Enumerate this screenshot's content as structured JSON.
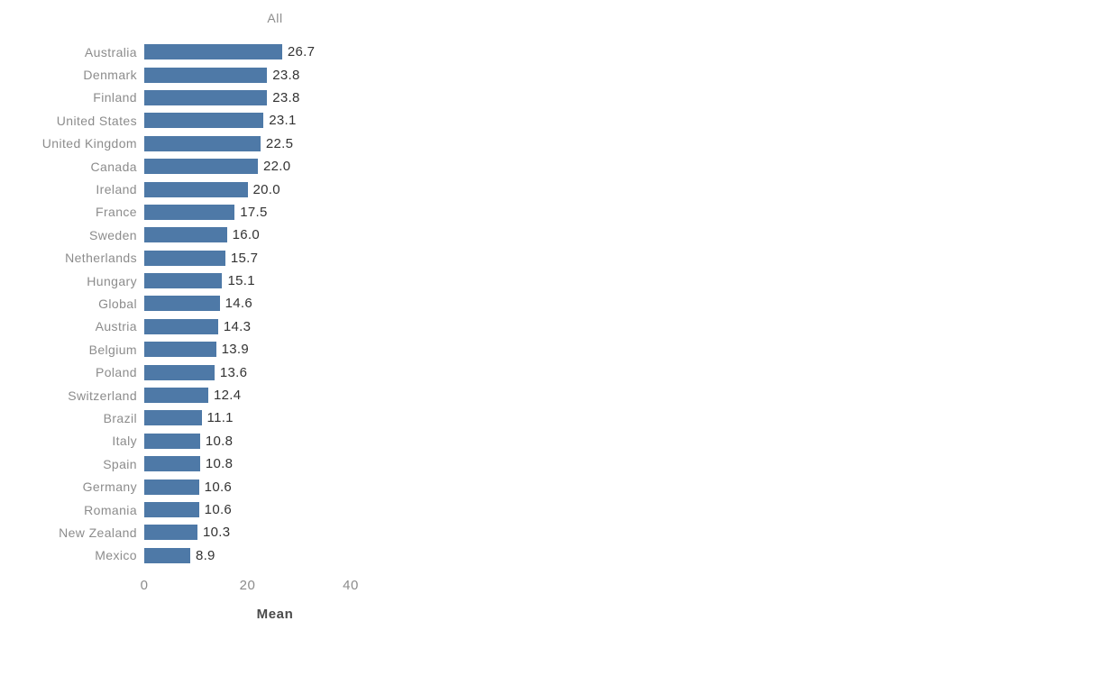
{
  "chart_data": {
    "type": "bar",
    "orientation": "horizontal",
    "title": "All",
    "xlabel": "Mean",
    "ylabel": "",
    "xlim": [
      0,
      40
    ],
    "x_ticks": [
      0,
      20,
      40
    ],
    "grid": false,
    "legend": false,
    "bar_color": "#4e79a7",
    "category_label_color": "#8c8c8c",
    "value_label_color": "#333333",
    "categories": [
      "Australia",
      "Denmark",
      "Finland",
      "United States",
      "United Kingdom",
      "Canada",
      "Ireland",
      "France",
      "Sweden",
      "Netherlands",
      "Hungary",
      "Global",
      "Austria",
      "Belgium",
      "Poland",
      "Switzerland",
      "Brazil",
      "Italy",
      "Spain",
      "Germany",
      "Romania",
      "New Zealand",
      "Mexico"
    ],
    "values": [
      26.7,
      23.8,
      23.8,
      23.1,
      22.5,
      22.0,
      20.0,
      17.5,
      16.0,
      15.7,
      15.1,
      14.6,
      14.3,
      13.9,
      13.6,
      12.4,
      11.1,
      10.8,
      10.8,
      10.6,
      10.6,
      10.3,
      8.9
    ]
  }
}
